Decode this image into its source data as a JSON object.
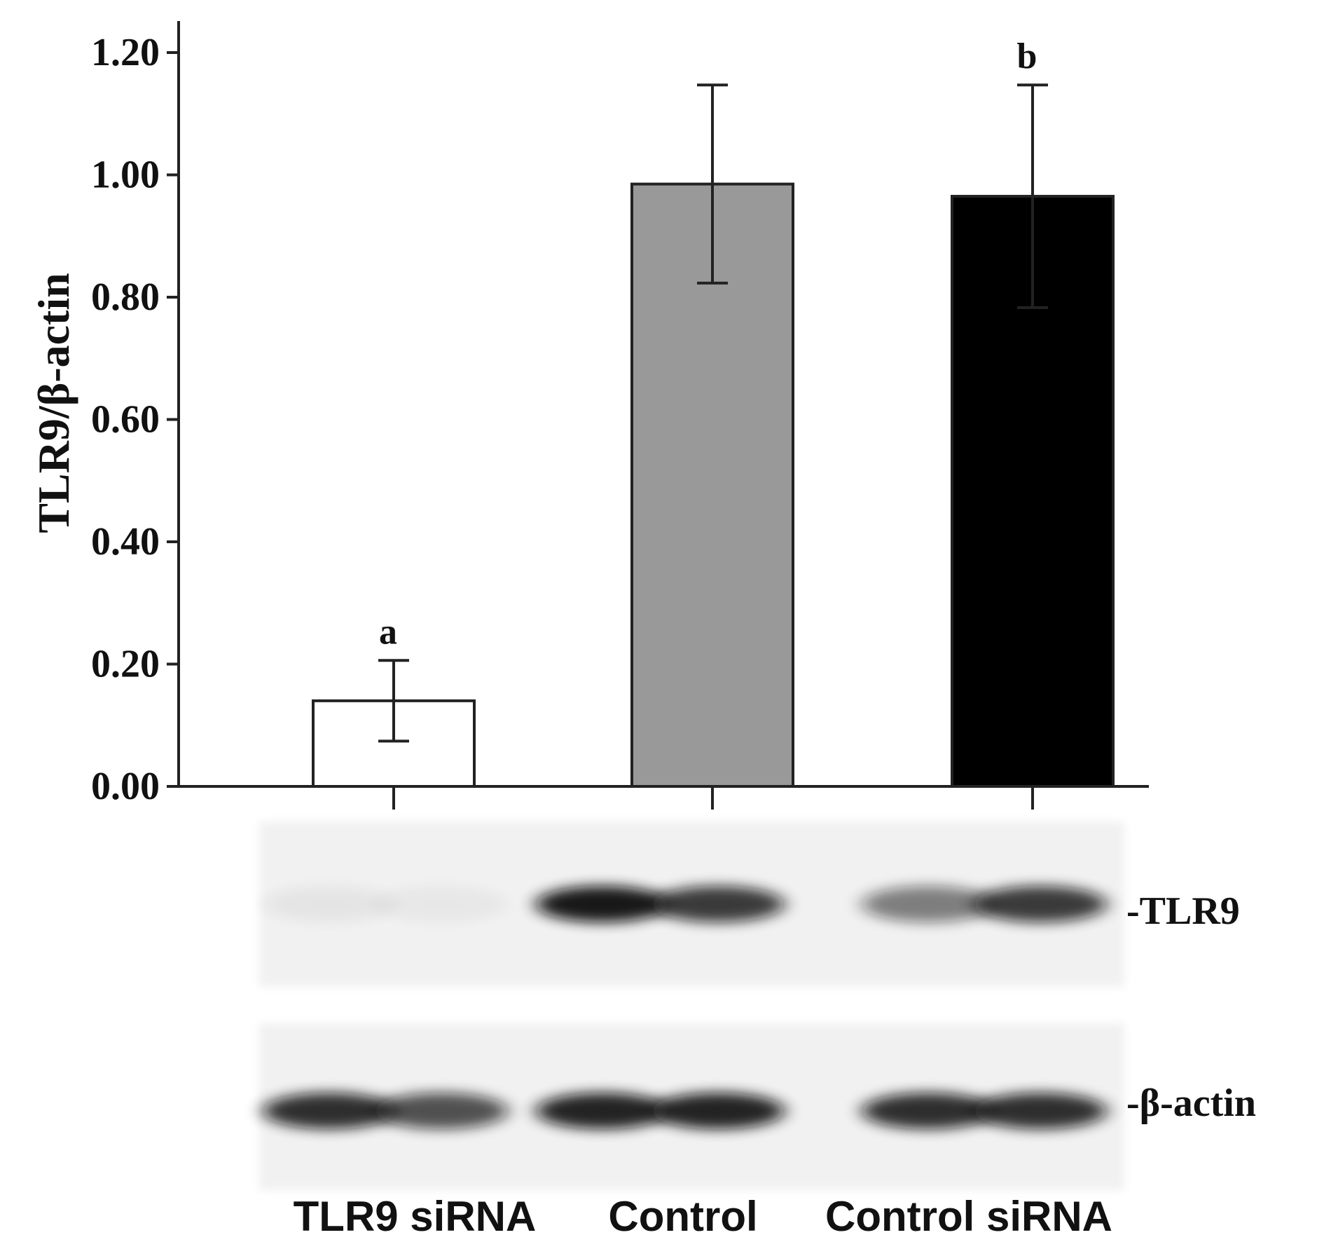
{
  "chart_data": {
    "type": "bar",
    "ylabel": "TLR9/β-actin",
    "xlabel": "",
    "ylim": [
      0,
      1.26
    ],
    "yticks": [
      "0.00",
      "0.20",
      "0.40",
      "0.60",
      "0.80",
      "1.00",
      "1.20"
    ],
    "categories": [
      "TLR9 siRNA",
      "Control",
      "Control siRNA"
    ],
    "values": [
      0.14,
      0.985,
      0.965
    ],
    "errors": [
      0.066,
      0.162,
      0.182
    ],
    "bar_colors": [
      "#ffffff",
      "#999999",
      "#000000"
    ],
    "annotations": [
      "a",
      "",
      "b"
    ],
    "blot_labels": [
      "-TLR9",
      "-β-actin"
    ],
    "blot_band_intensity": {
      "TLR9": [
        [
          0.05,
          0.04
        ],
        [
          0.95,
          0.8
        ],
        [
          0.5,
          0.8
        ]
      ],
      "β-actin": [
        [
          0.85,
          0.7
        ],
        [
          0.9,
          0.9
        ],
        [
          0.85,
          0.85
        ]
      ]
    },
    "grid": false
  }
}
